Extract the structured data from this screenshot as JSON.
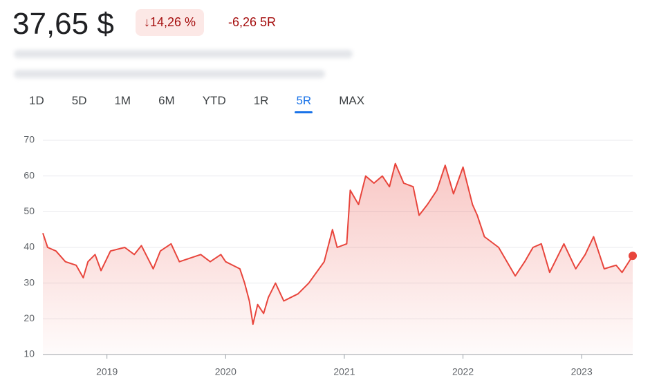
{
  "header": {
    "price": "37,65 $",
    "change_percent": "↓14,26 %",
    "change_abs": "-6,26 5R"
  },
  "tabs": {
    "items": [
      "1D",
      "5D",
      "1M",
      "6M",
      "YTD",
      "1R",
      "5R",
      "MAX"
    ],
    "selected": 6
  },
  "chart_data": {
    "type": "line",
    "color": "#e8453c",
    "grid": true,
    "x": [
      2018.46,
      2018.5,
      2018.57,
      2018.65,
      2018.74,
      2018.8,
      2018.84,
      2018.9,
      2018.95,
      2019.03,
      2019.15,
      2019.23,
      2019.29,
      2019.39,
      2019.45,
      2019.54,
      2019.61,
      2019.79,
      2019.87,
      2019.96,
      2020.0,
      2020.12,
      2020.16,
      2020.2,
      2020.23,
      2020.27,
      2020.32,
      2020.36,
      2020.42,
      2020.49,
      2020.55,
      2020.61,
      2020.7,
      2020.83,
      2020.9,
      2020.94,
      2021.02,
      2021.05,
      2021.12,
      2021.18,
      2021.25,
      2021.32,
      2021.38,
      2021.43,
      2021.5,
      2021.58,
      2021.63,
      2021.7,
      2021.78,
      2021.85,
      2021.92,
      2022.0,
      2022.08,
      2022.12,
      2022.18,
      2022.3,
      2022.44,
      2022.52,
      2022.59,
      2022.66,
      2022.73,
      2022.85,
      2022.95,
      2023.03,
      2023.1,
      2023.19,
      2023.29,
      2023.34,
      2023.43
    ],
    "values": [
      44,
      40,
      39,
      36,
      35,
      31.5,
      36,
      38,
      33.5,
      39,
      40,
      38,
      40.5,
      34,
      39,
      41,
      36,
      38,
      36,
      38,
      36,
      34,
      30,
      25,
      18.5,
      24,
      21.5,
      26,
      30,
      25,
      26,
      27,
      30,
      36,
      45,
      40,
      41,
      56,
      52,
      60,
      58,
      60,
      57,
      63.5,
      58,
      57,
      49,
      52,
      56,
      63,
      55,
      62.5,
      52,
      49,
      43,
      40,
      32,
      36,
      40,
      41,
      33,
      41,
      34,
      38,
      43,
      34,
      35,
      33,
      37.65
    ],
    "xlim": [
      2018.46,
      2023.43
    ],
    "xticks": [
      2019,
      2020,
      2021,
      2022,
      2023
    ],
    "ylim": [
      10,
      70
    ],
    "yticks": [
      10,
      20,
      30,
      40,
      50,
      60,
      70
    ]
  }
}
